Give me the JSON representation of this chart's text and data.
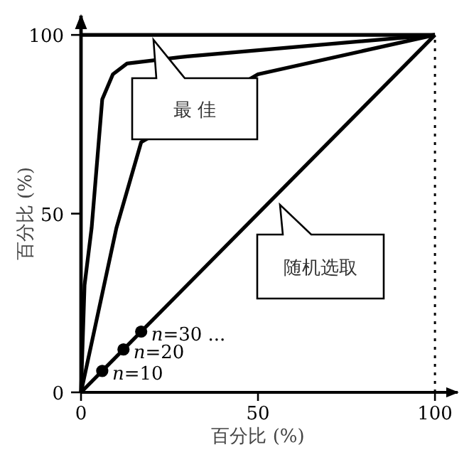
{
  "chart_data": {
    "type": "line",
    "xlabel": "百分比 (%)",
    "ylabel": "百分比 (%)",
    "xlim": [
      0,
      106
    ],
    "ylim": [
      0,
      105
    ],
    "xticks": [
      0,
      50,
      100
    ],
    "yticks": [
      0,
      50,
      100
    ],
    "grid": false,
    "marker": "none",
    "series": [
      {
        "color": "#000000",
        "x": [
          0,
          100
        ],
        "values": [
          100,
          100
        ]
      },
      {
        "color": "#000000",
        "x": [
          0,
          1,
          3,
          5,
          6,
          9,
          13,
          30,
          100
        ],
        "values": [
          0,
          30,
          46,
          70,
          82,
          89,
          92,
          94,
          100
        ]
      },
      {
        "color": "#000000",
        "x": [
          0,
          10,
          17,
          50,
          100
        ],
        "values": [
          0,
          46,
          70,
          89,
          100
        ]
      },
      {
        "color": "#000000",
        "x": [
          0,
          100
        ],
        "values": [
          0,
          100
        ]
      },
      {
        "type": "scatter",
        "marker": "circle",
        "color": "#000000",
        "x": [
          6,
          12,
          17
        ],
        "values": [
          6,
          12,
          17
        ]
      }
    ],
    "ref_lines": [
      {
        "axis": "x",
        "value": 100,
        "line_style": "dotted",
        "color": "#000000"
      }
    ],
    "annotations": [
      "最 佳",
      "随机选取",
      {
        "text": "*n*=10",
        "x": 6,
        "y": 6
      },
      {
        "text": "*n*=20",
        "x": 12,
        "y": 12
      },
      {
        "text": "*n*=30 ...",
        "x": 17,
        "y": 17
      }
    ]
  }
}
